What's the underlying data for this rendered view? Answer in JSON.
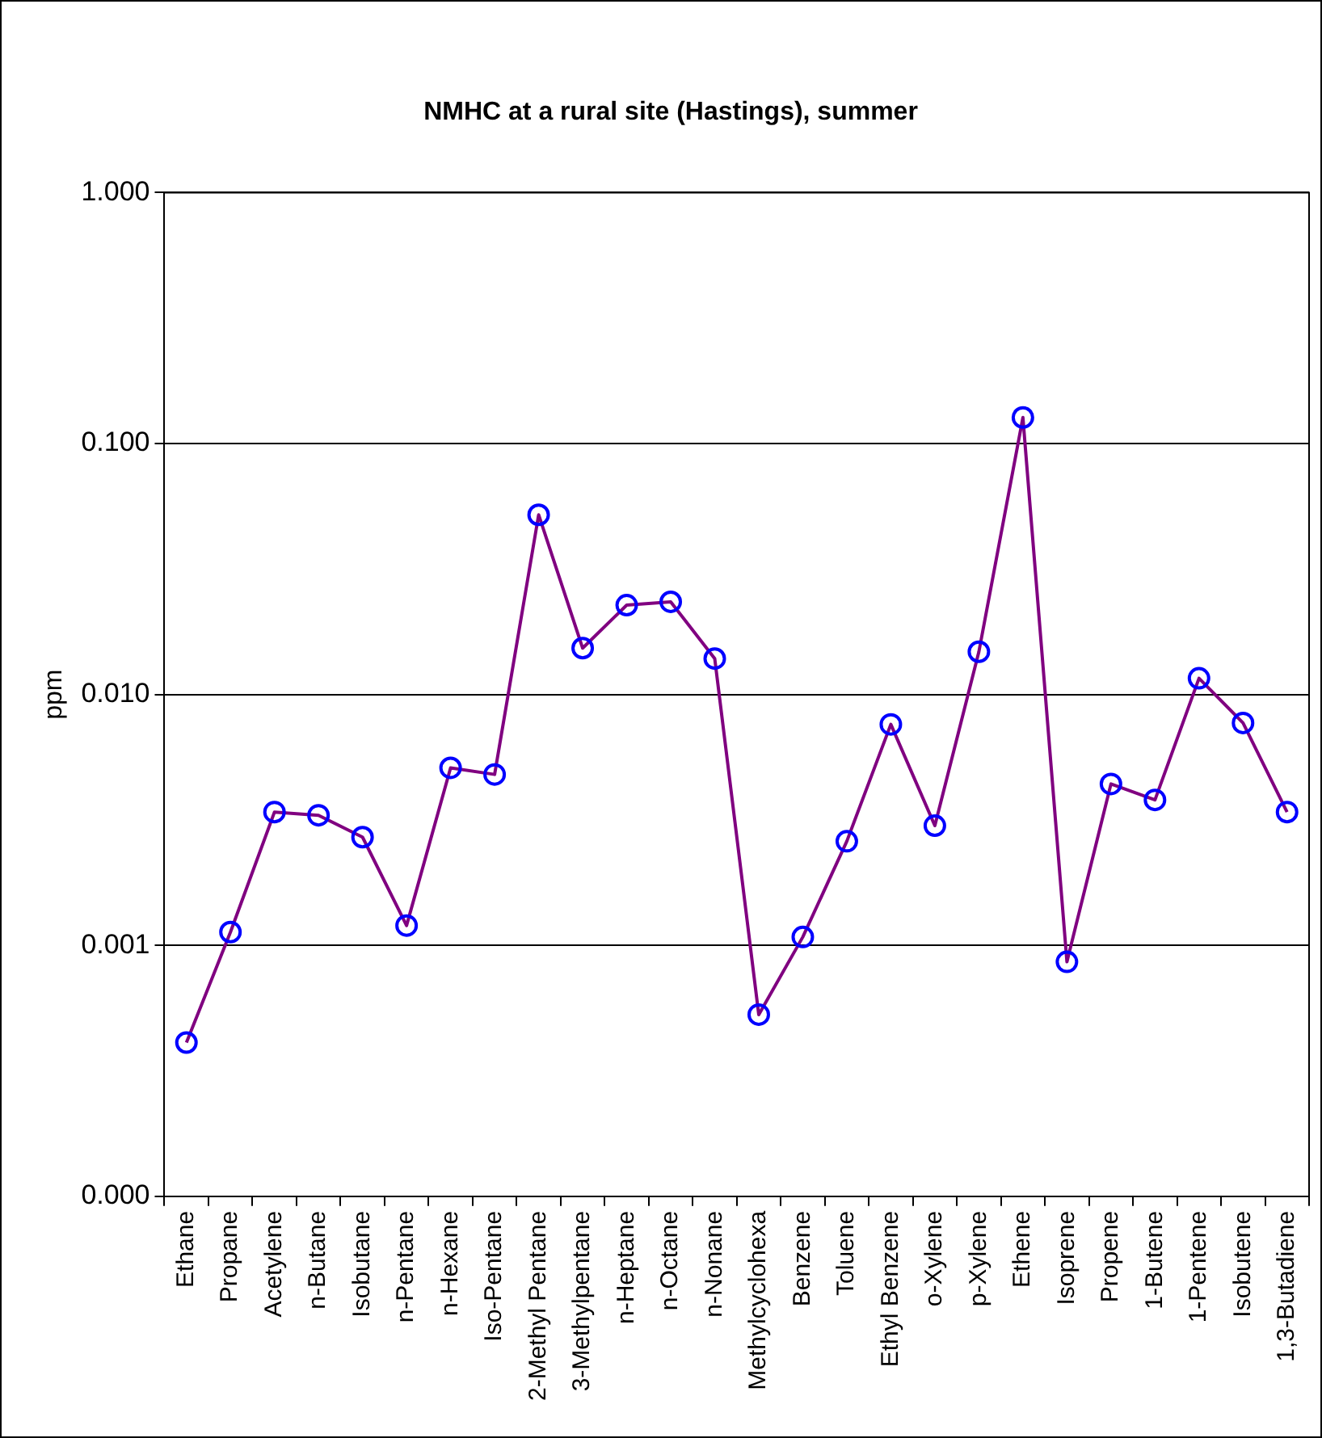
{
  "chart_data": {
    "type": "line",
    "title": "NMHC at a rural site (Hastings), summer",
    "ylabel": "ppm",
    "categories": [
      "Ethane",
      "Propane",
      "Acetylene",
      "n-Butane",
      "Isobutane",
      "n-Pentane",
      "n-Hexane",
      "Iso-Pentane",
      "2-Methyl Pentane",
      "3-Methylpentane",
      "n-Heptane",
      "n-Octane",
      "n-Nonane",
      "Methylcyclohexa",
      "Benzene",
      "Toluene",
      "Ethyl Benzene",
      "o-Xylene",
      "p-Xylene",
      "Ethene",
      "Isoprene",
      "Propene",
      "1-Butene",
      "1-Pentene",
      "Isobutene",
      "1,3-Butadiene"
    ],
    "series": [
      {
        "color": "#800080",
        "values": [
          0.00041,
          0.00113,
          0.0034,
          0.0033,
          0.0027,
          0.0012,
          0.0051,
          0.0048,
          0.052,
          0.0153,
          0.0227,
          0.0234,
          0.0139,
          0.00053,
          0.00108,
          0.0026,
          0.0076,
          0.003,
          0.0148,
          0.127,
          0.00086,
          0.0044,
          0.0038,
          0.0116,
          0.0077,
          0.0034
        ]
      }
    ],
    "log": "y",
    "ylim": [
      0.0001,
      1
    ],
    "yticks": [
      {
        "value": 0.0001,
        "label": "0.000"
      },
      {
        "value": 0.001,
        "label": "0.001"
      },
      {
        "value": 0.01,
        "label": "0.010"
      },
      {
        "value": 0.1,
        "label": "0.100"
      },
      {
        "value": 1,
        "label": "1.000"
      }
    ],
    "grid": "y",
    "legend": false,
    "marker": "circle",
    "line_style": "solid"
  }
}
